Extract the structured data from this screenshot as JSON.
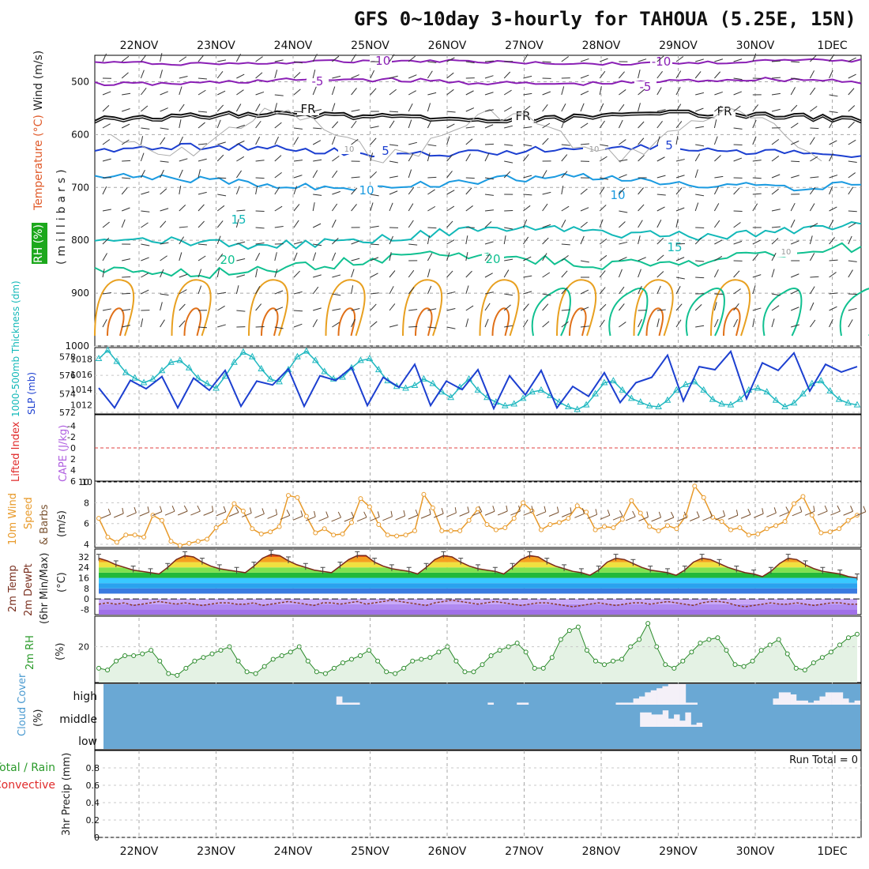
{
  "title": "GFS 0~10day 3-hourly for TAHOUA (5.25E, 15N)",
  "dates": [
    "22NOV",
    "23NOV",
    "24NOV",
    "25NOV",
    "26NOV",
    "27NOV",
    "28NOV",
    "29NOV",
    "30NOV",
    "1DEC"
  ],
  "run_total": "Run Total = 0",
  "colors": {
    "purple": "#8a1fb5",
    "black": "#111111",
    "blue_dark": "#1c3fd0",
    "blue": "#1a9ae0",
    "cyan": "#12b8b8",
    "teal": "#10c090",
    "orange": "#e8a020",
    "orange_dark": "#e07018",
    "cloud_bg": "#6aa8d4",
    "rh_fill": "#e4f2e4",
    "rh_line": "#2a8a2a",
    "wind_orange": "#e89a2a"
  },
  "chart_data": [
    {
      "type": "line",
      "panel": "upper-air",
      "axis_label_parts": [
        "RH (%)",
        "Temperature (°C)",
        "Wind (m/s)"
      ],
      "ylabel": "(millibars)",
      "y_ticks": [
        "500",
        "600",
        "700",
        "800",
        "900",
        "1000"
      ],
      "ylim": [
        1000,
        450
      ],
      "series": [
        {
          "name": "-10",
          "pressure_mb": 463
        },
        {
          "name": "-5",
          "pressure_mb": 500
        },
        {
          "name": "FR",
          "pressure_mb": 565
        },
        {
          "name": "5",
          "pressure_mb": 630
        },
        {
          "name": "10",
          "pressure_mb": 690
        },
        {
          "name": "15",
          "pressure_mb": 790
        },
        {
          "name": "20",
          "pressure_mb": 840
        }
      ],
      "contour_labels": [
        "-10",
        "-5",
        "-5",
        "-10",
        "FR",
        "FR",
        "FR",
        "5",
        "5",
        "10",
        "10",
        "15",
        "15",
        "20",
        "20",
        "10",
        "10",
        "10"
      ]
    },
    {
      "type": "line",
      "panel": "thickness-slp",
      "left_label": "1000-500mb Thickness (dm)",
      "right_label": "SLP (mb)",
      "y_ticks_left": [
        "572",
        "574",
        "576",
        "578"
      ],
      "y_ticks_right": [
        "1012",
        "1014",
        "1016",
        "1018"
      ],
      "ylim_left": [
        572,
        579
      ],
      "ylim_right": [
        1011,
        1019.5
      ],
      "series": [
        {
          "name": "Thickness",
          "values": [
            577.8,
            578.7,
            577.5,
            576.3,
            575.7,
            575.2,
            575.6,
            576.5,
            577.4,
            577.6,
            576.8,
            575.7,
            575.1,
            574.6,
            575.9,
            577.4,
            578.5,
            578.0,
            576.7,
            575.6,
            575.3,
            576.6,
            578.0,
            578.6,
            577.6,
            576.4,
            575.6,
            575.8,
            576.8,
            577.6,
            577.8,
            576.6,
            575.4,
            574.8,
            574.6,
            574.9,
            575.6,
            575.1,
            574.2,
            573.6,
            574.7,
            575.6,
            574.4,
            573.6,
            573.1,
            572.7,
            572.9,
            573.5,
            574.2,
            574.4,
            573.8,
            573.1,
            572.6,
            572.3,
            572.8,
            574.0,
            575.2,
            575.4,
            574.4,
            573.5,
            573.1,
            572.7,
            572.6,
            573.3,
            574.4,
            575.0,
            575.3,
            574.4,
            573.4,
            572.9,
            572.8,
            573.4,
            574.4,
            574.6,
            574.2,
            573.3,
            572.6,
            573.0,
            574.0,
            575.1,
            575.4,
            574.3,
            573.4,
            573.0,
            572.8
          ]
        },
        {
          "name": "SLP",
          "values": [
            1014.2,
            1011.6,
            1015.2,
            1014.1,
            1015.7,
            1011.6,
            1015.5,
            1013.9,
            1016.5,
            1011.8,
            1015.1,
            1014.6,
            1016.7,
            1011.8,
            1015.8,
            1015.2,
            1016.9,
            1011.9,
            1015.6,
            1014.3,
            1017.3,
            1011.9,
            1015.1,
            1014.0,
            1016.6,
            1011.5,
            1015.8,
            1013.3,
            1016.5,
            1011.6,
            1014.4,
            1013.1,
            1016.2,
            1012.3,
            1014.9,
            1015.6,
            1018.5,
            1012.5,
            1017.0,
            1016.6,
            1019.0,
            1012.8,
            1017.5,
            1016.5,
            1018.8,
            1013.8,
            1017.3,
            1016.3,
            1017.0
          ]
        }
      ]
    },
    {
      "type": "line",
      "panel": "stability",
      "left_label": "Lifted Index",
      "right_label": "CAPE (J/kg)",
      "y_ticks": [
        "-4",
        "-2",
        "0",
        "2",
        "4",
        "6"
      ],
      "ylim": [
        -6,
        6
      ],
      "series": [
        {
          "name": "Lifted Index",
          "values": []
        }
      ]
    },
    {
      "type": "line",
      "panel": "10m-wind",
      "label_parts": [
        "10m Wind",
        "Speed",
        "& Barbs"
      ],
      "ylabel": "(m/s)",
      "y_ticks": [
        "4",
        "6",
        "8",
        "10"
      ],
      "ylim": [
        3.7,
        10
      ],
      "series": [
        {
          "name": "10m Wind Speed",
          "values": [
            6.5,
            4.7,
            4.2,
            4.9,
            4.9,
            4.7,
            6.8,
            6.3,
            4.3,
            3.9,
            4.1,
            4.3,
            4.5,
            5.6,
            6.2,
            7.9,
            7.2,
            5.5,
            5.0,
            5.2,
            5.7,
            8.7,
            8.5,
            6.7,
            5.1,
            5.5,
            4.9,
            5.0,
            6.1,
            8.4,
            7.6,
            5.9,
            4.9,
            4.8,
            4.9,
            5.3,
            8.8,
            7.5,
            5.3,
            5.3,
            5.3,
            6.3,
            7.4,
            5.9,
            5.4,
            5.6,
            6.5,
            8.0,
            7.2,
            5.4,
            5.9,
            6.1,
            6.5,
            7.7,
            7.1,
            5.4,
            5.7,
            5.6,
            6.4,
            8.2,
            7.0,
            5.7,
            5.3,
            5.8,
            5.5,
            6.7,
            9.6,
            8.5,
            6.6,
            6.2,
            5.4,
            5.6,
            4.9,
            5.0,
            5.5,
            5.8,
            6.2,
            7.9,
            8.6,
            6.8,
            5.1,
            5.2,
            5.5,
            6.3,
            6.8
          ]
        }
      ]
    },
    {
      "type": "area",
      "panel": "2m-temp",
      "label_parts": [
        "2m Temp",
        "2m DewPt",
        "(6hr Min/Max)"
      ],
      "ylabel": "(°C)",
      "y_ticks": [
        "-8",
        "0",
        "8",
        "16",
        "24",
        "32"
      ],
      "ylim": [
        -12,
        38
      ],
      "series": [
        {
          "name": "2m Temp",
          "values": [
            31,
            29,
            26,
            24,
            22,
            21,
            20,
            19,
            24,
            30,
            33,
            32,
            28,
            25,
            23,
            22,
            21,
            20,
            25,
            31,
            34,
            33,
            29,
            26,
            24,
            22,
            21,
            20,
            25,
            30,
            33,
            33,
            28,
            25,
            23,
            22,
            21,
            19,
            24,
            30,
            33,
            32,
            28,
            25,
            23,
            22,
            21,
            19,
            24,
            30,
            33,
            32,
            28,
            25,
            23,
            21,
            20,
            18,
            22,
            28,
            31,
            30,
            27,
            24,
            22,
            21,
            20,
            18,
            22,
            28,
            31,
            30,
            27,
            24,
            22,
            20,
            19,
            17,
            21,
            27,
            31,
            30,
            26,
            23,
            21,
            20,
            19,
            17,
            16
          ]
        },
        {
          "name": "2m DewPt",
          "values": [
            -4,
            -3,
            -4,
            -3,
            -5,
            -4,
            -3,
            -2,
            -3,
            -4,
            -3,
            -4,
            -5,
            -4,
            -3,
            -3,
            -4,
            -4,
            -3,
            -5,
            -4,
            -3,
            -2,
            -3,
            -4,
            -5,
            -3,
            -3,
            -4,
            -3,
            -2,
            -4,
            -3,
            -2,
            -1,
            -2,
            -3,
            -4,
            -5,
            -3,
            -2,
            -1,
            -2,
            -3,
            -4,
            -3,
            -2,
            -3,
            -4,
            -5,
            -4,
            -3,
            -3,
            -4,
            -5,
            -6,
            -5,
            -4,
            -3,
            -4,
            -5,
            -4,
            -3,
            -3,
            -4,
            -3,
            -2,
            -3,
            -4,
            -5,
            -3,
            -2,
            -2,
            -3,
            -5,
            -6,
            -5,
            -4,
            -3,
            -4,
            -4,
            -3,
            -4,
            -5,
            -4,
            -3,
            -3,
            -4,
            -4
          ]
        }
      ]
    },
    {
      "type": "area",
      "panel": "2m-rh",
      "ylabel_parts": [
        "2m RH",
        "(%)"
      ],
      "y_ticks": [
        "20"
      ],
      "ylim": [
        0,
        37
      ],
      "series": [
        {
          "name": "2m RH",
          "values": [
            8.0,
            7.0,
            12.0,
            15.0,
            15.0,
            16.0,
            18.0,
            12.0,
            5.0,
            4.0,
            8.0,
            12.0,
            14.0,
            16.0,
            18.0,
            20.0,
            12.0,
            6.0,
            5.0,
            9.0,
            13.0,
            15.0,
            17.0,
            20.0,
            12.0,
            6.0,
            5.0,
            8.0,
            11.0,
            13.0,
            15.0,
            18.0,
            12.0,
            6.0,
            5.0,
            8.0,
            12.0,
            13.0,
            14.0,
            17.0,
            20.0,
            12.0,
            6.0,
            6.0,
            10.0,
            15.0,
            18.0,
            20.0,
            22.0,
            17.0,
            8.0,
            8.0,
            14.0,
            24.0,
            29.0,
            31.0,
            18.0,
            12.0,
            10.0,
            12.0,
            13.0,
            20.0,
            24.0,
            33.0,
            20.0,
            10.0,
            8.0,
            12.0,
            17.0,
            22.0,
            24.0,
            25.0,
            18.0,
            10.0,
            9.0,
            12.0,
            18.0,
            21.0,
            24.0,
            16.0,
            8.0,
            7.0,
            11.0,
            14.0,
            17.0,
            21.0,
            25.0,
            27.0
          ]
        }
      ]
    },
    {
      "type": "bar",
      "panel": "cloud-cover",
      "ylabel_parts": [
        "Cloud Cover",
        "(%)"
      ],
      "levels": [
        "high",
        "middle",
        "low"
      ],
      "series": [
        {
          "name": "high",
          "values": [
            0,
            0,
            0,
            0,
            0,
            0,
            0,
            0,
            0,
            0,
            0,
            0,
            0,
            0,
            0,
            0,
            0,
            0,
            0,
            0,
            0,
            0,
            0,
            0,
            0,
            0,
            0,
            0,
            0,
            0,
            0,
            0,
            0,
            0,
            0,
            0,
            0,
            0,
            0,
            0,
            40,
            10,
            10,
            10,
            0,
            0,
            0,
            0,
            0,
            0,
            0,
            0,
            0,
            0,
            0,
            0,
            0,
            0,
            0,
            0,
            0,
            0,
            0,
            0,
            0,
            0,
            10,
            0,
            0,
            0,
            0,
            10,
            10,
            0,
            0,
            0,
            0,
            0,
            0,
            0,
            0,
            0,
            0,
            0,
            0,
            0,
            0,
            0,
            10,
            10,
            10,
            30,
            40,
            60,
            70,
            80,
            90,
            100,
            100,
            100,
            10,
            10,
            0,
            0,
            0,
            0,
            0,
            0,
            0,
            0,
            0,
            0,
            0,
            0,
            0,
            30,
            60,
            60,
            50,
            20,
            20,
            10,
            20,
            40,
            60,
            60,
            60,
            30,
            10,
            20
          ]
        },
        {
          "name": "middle",
          "values": [
            0,
            0,
            0,
            0,
            0,
            0,
            0,
            0,
            0,
            0,
            0,
            0,
            0,
            0,
            0,
            0,
            0,
            0,
            0,
            0,
            0,
            0,
            0,
            0,
            0,
            0,
            0,
            0,
            0,
            0,
            0,
            0,
            0,
            0,
            0,
            0,
            0,
            0,
            0,
            0,
            0,
            0,
            0,
            0,
            0,
            0,
            0,
            0,
            0,
            0,
            0,
            0,
            0,
            0,
            0,
            0,
            0,
            0,
            0,
            0,
            0,
            0,
            0,
            0,
            0,
            0,
            0,
            0,
            0,
            0,
            0,
            0,
            0,
            0,
            0,
            0,
            0,
            0,
            0,
            0,
            0,
            0,
            0,
            0,
            0,
            0,
            0,
            0,
            0,
            0,
            0,
            0,
            0,
            0,
            0,
            70,
            70,
            60,
            60,
            80,
            40,
            60,
            30,
            70,
            10,
            20,
            0,
            0,
            0,
            0,
            0,
            0,
            0,
            0,
            0,
            0,
            0,
            0,
            0,
            0,
            0,
            0,
            0,
            0,
            0,
            0,
            0,
            0,
            0,
            0,
            0,
            0,
            0,
            0
          ]
        },
        {
          "name": "low",
          "values": []
        }
      ]
    },
    {
      "type": "bar",
      "panel": "precip",
      "left_label_parts": [
        "Total / Rain",
        "Convective"
      ],
      "ylabel": "3hr Precip (mm)",
      "y_ticks": [
        "0",
        "0.2",
        "0.4",
        "0.6",
        "0.8"
      ],
      "ylim": [
        0,
        1
      ],
      "series": [
        {
          "name": "3hr Precip",
          "values": []
        }
      ]
    }
  ]
}
